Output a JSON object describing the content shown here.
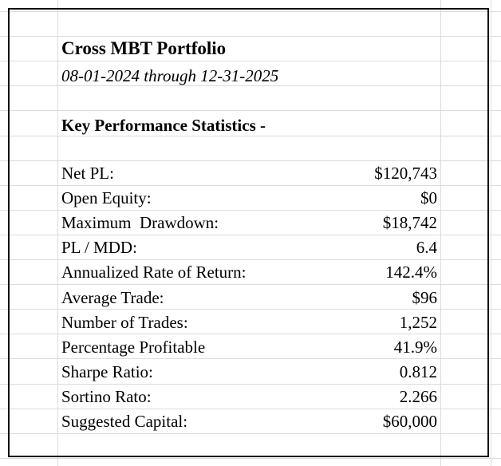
{
  "header": {
    "title": "Cross MBT Portfolio",
    "subtitle": "08-01-2024 through 12-31-2025"
  },
  "section": {
    "heading": "Key Performance Statistics -"
  },
  "table": {
    "rows": [
      [
        "Net PL:",
        "$120,743"
      ],
      [
        "Open Equity:",
        "$0"
      ],
      [
        "Maximum  Drawdown:",
        "$18,742"
      ],
      [
        "PL / MDD:",
        "6.4"
      ],
      [
        "Annualized Rate of Return:",
        "142.4%"
      ],
      [
        "Average Trade:",
        "$96"
      ],
      [
        "Number of Trades:",
        "1,252"
      ],
      [
        "Percentage Profitable",
        "41.9%"
      ],
      [
        "Sharpe Ratio:",
        "0.812"
      ],
      [
        "Sortino Rato:",
        "2.266"
      ],
      [
        "Suggested Capital:",
        "$60,000"
      ]
    ]
  }
}
